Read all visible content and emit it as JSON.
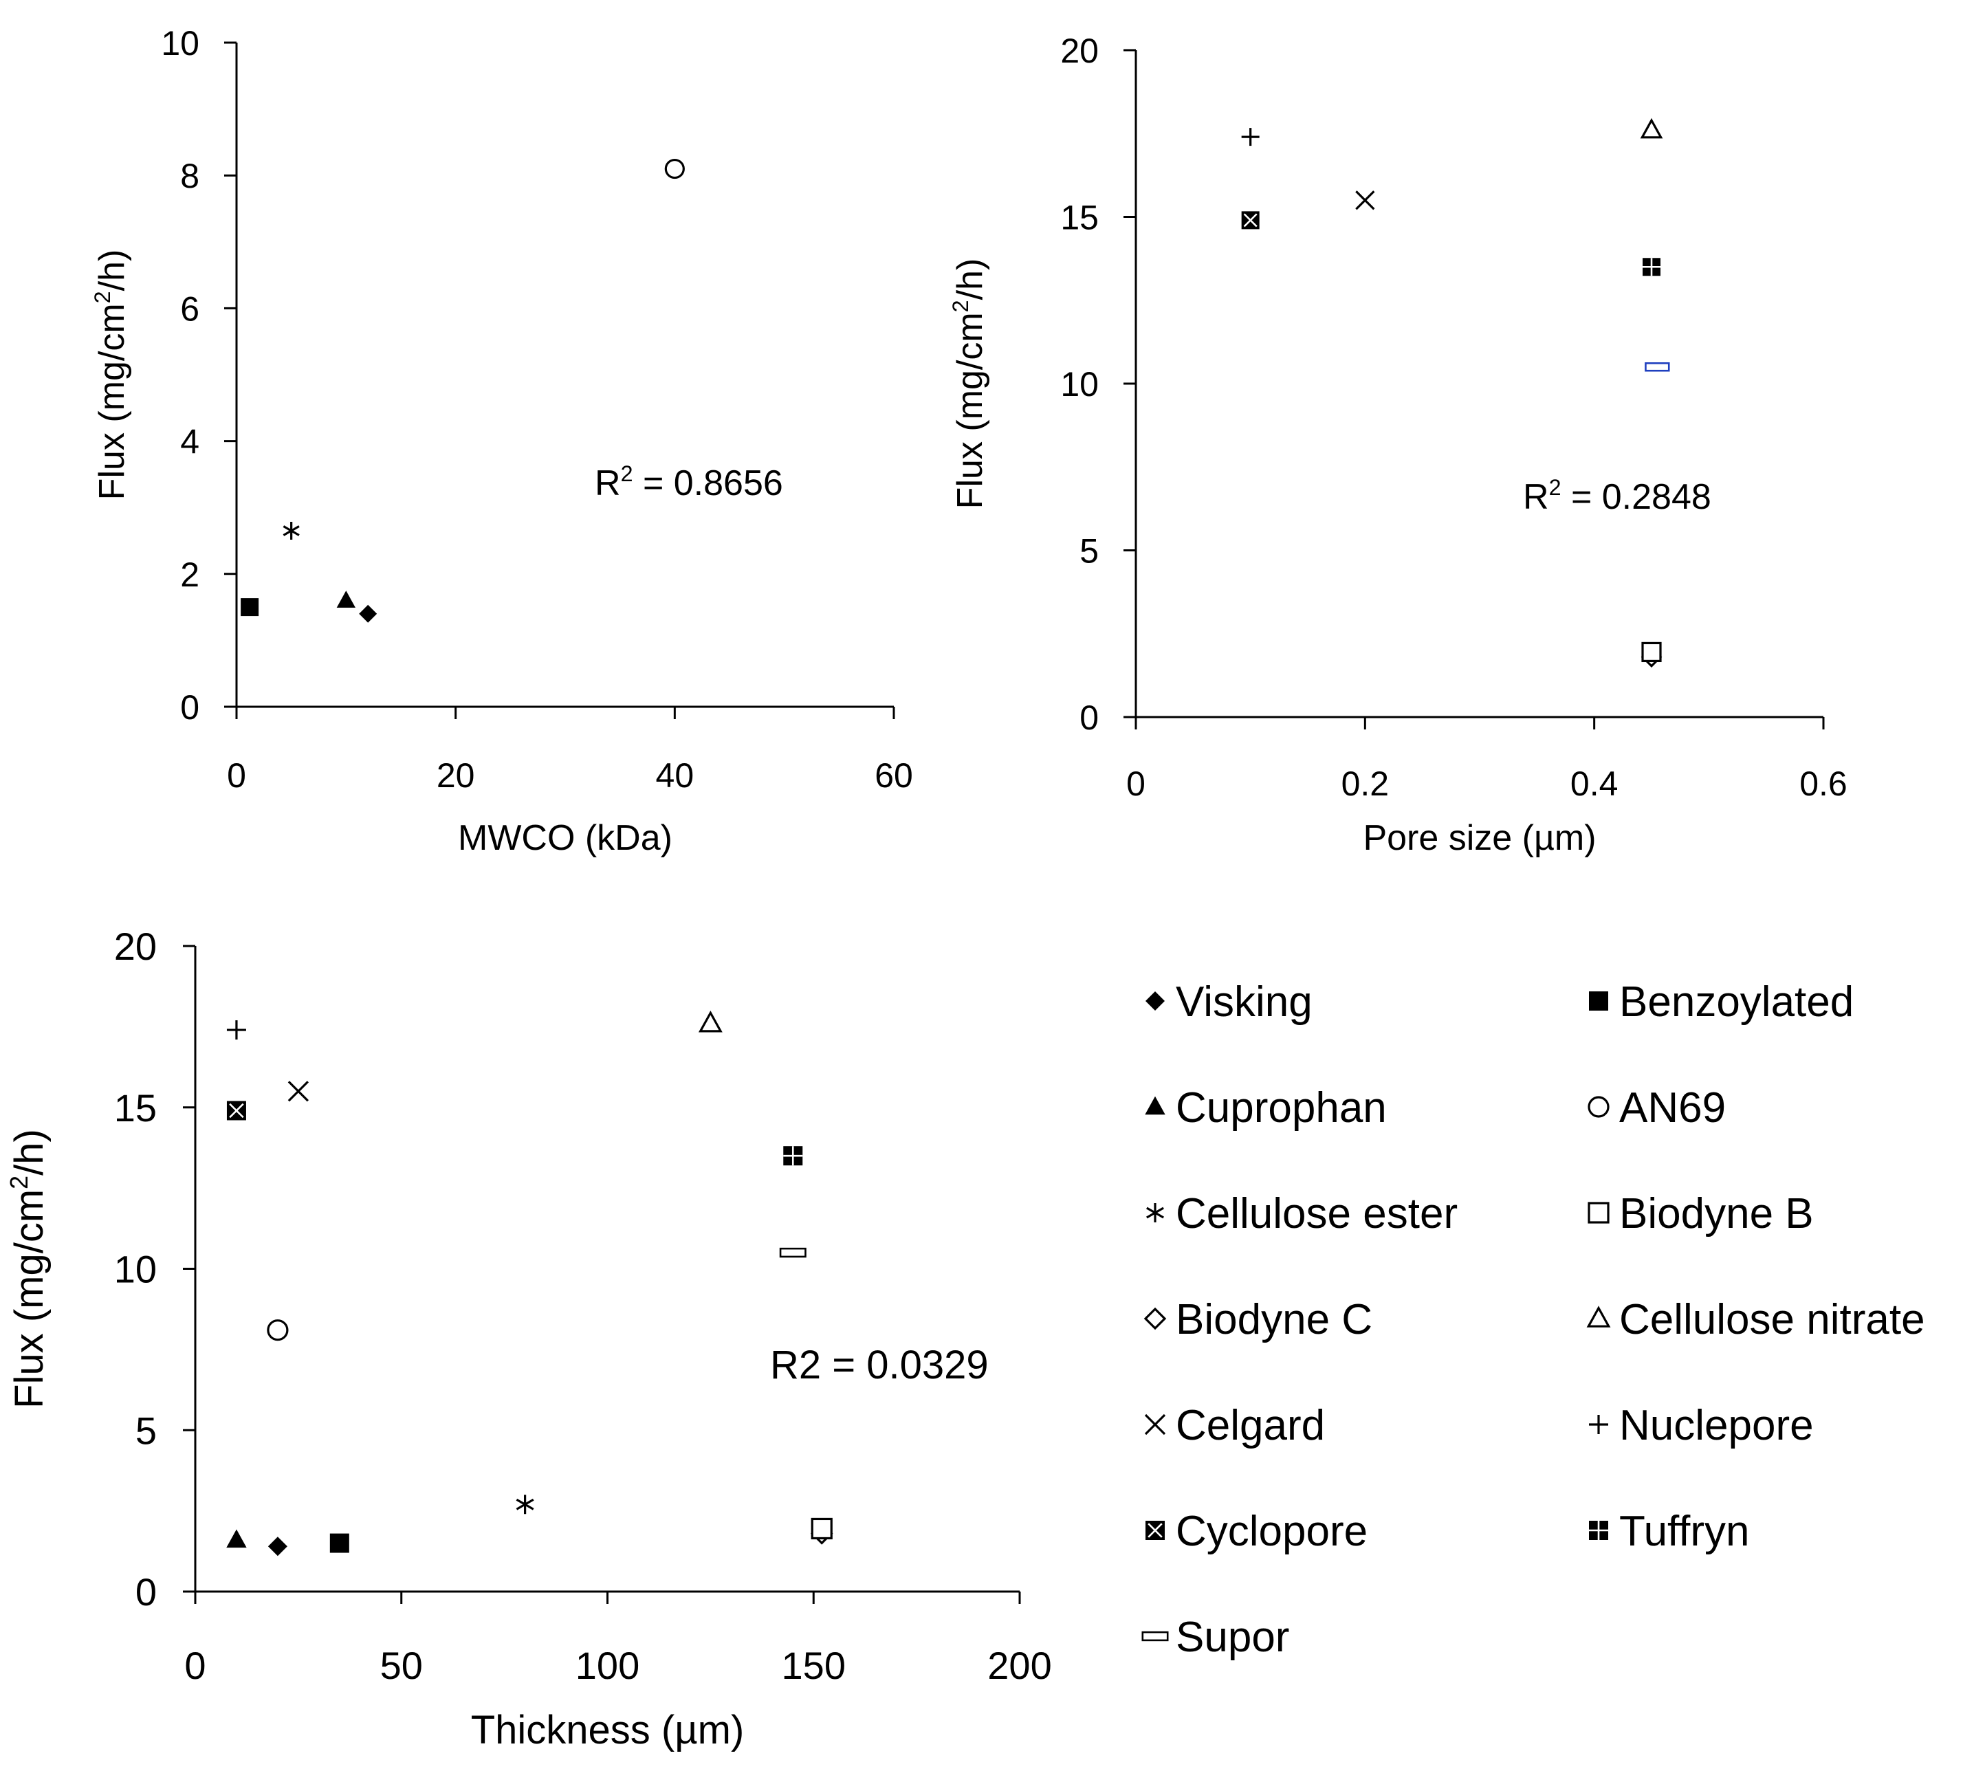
{
  "legend_items": [
    {
      "key": "visking",
      "label": "Visking",
      "marker": "filled-diamond"
    },
    {
      "key": "benzoylated",
      "label": "Benzoylated",
      "marker": "filled-square"
    },
    {
      "key": "cuprophan",
      "label": "Cuprophan",
      "marker": "filled-triangle"
    },
    {
      "key": "an69",
      "label": "AN69",
      "marker": "open-circle"
    },
    {
      "key": "cellulose_ester",
      "label": "Cellulose ester",
      "marker": "asterisk"
    },
    {
      "key": "biodyne_b",
      "label": "Biodyne B",
      "marker": "open-square"
    },
    {
      "key": "biodyne_c",
      "label": "Biodyne C",
      "marker": "open-diamond"
    },
    {
      "key": "cellulose_nitrate",
      "label": "Cellulose nitrate",
      "marker": "open-triangle"
    },
    {
      "key": "celgard",
      "label": "Celgard",
      "marker": "x-cross"
    },
    {
      "key": "nuclepore",
      "label": "Nuclepore",
      "marker": "plus"
    },
    {
      "key": "cyclopore",
      "label": "Cyclopore",
      "marker": "crossed-square"
    },
    {
      "key": "tuffryn",
      "label": "Tuffryn",
      "marker": "quad-square"
    },
    {
      "key": "supor",
      "label": "Supor",
      "marker": "dash"
    }
  ],
  "chart_data": [
    {
      "id": "mwco",
      "type": "scatter",
      "xlabel": "MWCO (kDa)",
      "ylabel_main": "Flux (mg/cm",
      "ylabel_sup": "2",
      "ylabel_tail": "/h)",
      "xlim": [
        0,
        60
      ],
      "ylim": [
        0,
        10
      ],
      "xticks": [
        0,
        20,
        40,
        60
      ],
      "yticks": [
        0,
        2,
        4,
        6,
        8,
        10
      ],
      "xtick_labels": [
        "0",
        "20",
        "40",
        "60"
      ],
      "ytick_labels": [
        "0",
        "2",
        "4",
        "6",
        "8",
        "10"
      ],
      "annotation_main": "R",
      "annotation_sup": "2",
      "annotation_tail": " = 0.8656",
      "points": [
        {
          "series": "benzoylated",
          "x": 1.2,
          "y": 1.5
        },
        {
          "series": "cellulose_ester",
          "x": 5,
          "y": 2.65
        },
        {
          "series": "cuprophan",
          "x": 10,
          "y": 1.6
        },
        {
          "series": "visking",
          "x": 12,
          "y": 1.4
        },
        {
          "series": "an69",
          "x": 40,
          "y": 8.1
        }
      ]
    },
    {
      "id": "pore",
      "type": "scatter",
      "xlabel": "Pore size (µm)",
      "ylabel_main": "Flux (mg/cm",
      "ylabel_sup": "2",
      "ylabel_tail": "/h)",
      "xlim": [
        0,
        0.6
      ],
      "ylim": [
        0,
        20
      ],
      "xticks": [
        0,
        0.2,
        0.4,
        0.6
      ],
      "yticks": [
        0,
        5,
        10,
        15,
        20
      ],
      "xtick_labels": [
        "0",
        "0.2",
        "0.4",
        "0.6"
      ],
      "ytick_labels": [
        "0",
        "5",
        "10",
        "15",
        "20"
      ],
      "annotation_main": "R",
      "annotation_sup": "2",
      "annotation_tail": " = 0.2848",
      "points": [
        {
          "series": "nuclepore",
          "x": 0.1,
          "y": 17.4
        },
        {
          "series": "cyclopore",
          "x": 0.1,
          "y": 14.9
        },
        {
          "series": "celgard",
          "x": 0.2,
          "y": 15.5
        },
        {
          "series": "cellulose_nitrate",
          "x": 0.45,
          "y": 17.6
        },
        {
          "series": "tuffryn",
          "x": 0.45,
          "y": 13.5
        },
        {
          "series": "supor",
          "x": 0.455,
          "y": 10.5,
          "color": "#1f3fbf"
        },
        {
          "series": "biodyne_c",
          "x": 0.45,
          "y": 1.8
        },
        {
          "series": "biodyne_b",
          "x": 0.45,
          "y": 1.95
        }
      ]
    },
    {
      "id": "thickness",
      "type": "scatter",
      "xlabel": "Thickness (µm)",
      "ylabel_main": "Flux (mg/cm",
      "ylabel_sup": "2",
      "ylabel_tail": "/h)",
      "xlim": [
        0,
        200
      ],
      "ylim": [
        0,
        20
      ],
      "xticks": [
        0,
        50,
        100,
        150,
        200
      ],
      "yticks": [
        0,
        5,
        10,
        15,
        20
      ],
      "xtick_labels": [
        "0",
        "50",
        "100",
        "150",
        "200"
      ],
      "ytick_labels": [
        "0",
        "5",
        "10",
        "15",
        "20"
      ],
      "annotation_main": "R2 = 0.0329",
      "annotation_sup": "",
      "annotation_tail": "",
      "points": [
        {
          "series": "nuclepore",
          "x": 10,
          "y": 17.4
        },
        {
          "series": "cyclopore",
          "x": 10,
          "y": 14.9
        },
        {
          "series": "celgard",
          "x": 25,
          "y": 15.5
        },
        {
          "series": "an69",
          "x": 20,
          "y": 8.1
        },
        {
          "series": "cuprophan",
          "x": 10,
          "y": 1.6
        },
        {
          "series": "visking",
          "x": 20,
          "y": 1.4
        },
        {
          "series": "benzoylated",
          "x": 35,
          "y": 1.5
        },
        {
          "series": "cellulose_ester",
          "x": 80,
          "y": 2.7
        },
        {
          "series": "cellulose_nitrate",
          "x": 125,
          "y": 17.6
        },
        {
          "series": "tuffryn",
          "x": 145,
          "y": 13.5
        },
        {
          "series": "supor",
          "x": 145,
          "y": 10.5
        },
        {
          "series": "biodyne_c",
          "x": 152,
          "y": 1.8
        },
        {
          "series": "biodyne_b",
          "x": 152,
          "y": 1.95
        }
      ]
    }
  ]
}
